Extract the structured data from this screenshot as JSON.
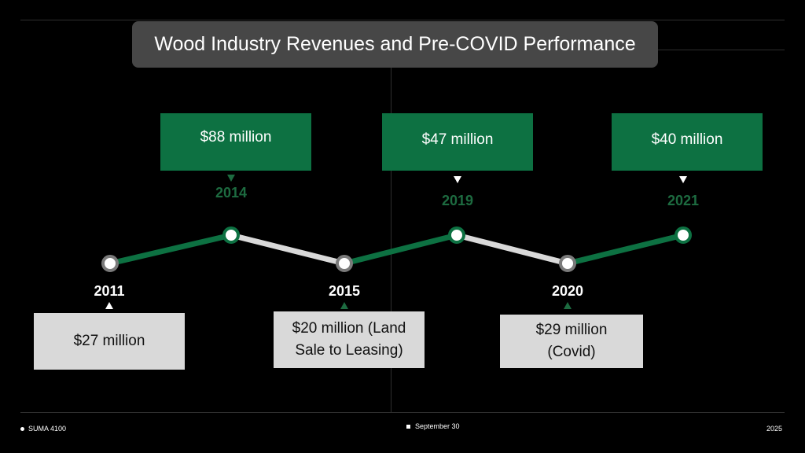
{
  "slide": {
    "title": "Wood Industry Revenues and  Pre-COVID Performance",
    "footer_left": "SUMA 4100",
    "footer_center": "September 30",
    "footer_right": "2025"
  },
  "colors": {
    "green": "#0d7142",
    "year_green": "#1d6b40",
    "grey_line": "#d9d9d9",
    "box_grey": "#d9d9d9"
  },
  "chart_data": {
    "type": "line",
    "title": "Wood Industry Revenues and  Pre-COVID Performance",
    "x": [
      "2011",
      "2014",
      "2015",
      "2019",
      "2020",
      "2021"
    ],
    "values": [
      27,
      88,
      20,
      47,
      29,
      40
    ],
    "unit": "million USD",
    "labels": [
      "$27 million",
      "$88 million",
      "$20 million (Land Sale to Leasing)",
      "$47 million",
      "$29 million (Covid)",
      "$40 million"
    ],
    "segment_colors": [
      "green",
      "grey",
      "green",
      "grey",
      "green"
    ]
  },
  "timeline": {
    "top": [
      {
        "year": "2014",
        "label": "$88 million"
      },
      {
        "year": "2019",
        "label": "$47 million"
      },
      {
        "year": "2021",
        "label": "$40 million"
      }
    ],
    "bottom": [
      {
        "year": "2011",
        "label": "$27 million"
      },
      {
        "year": "2015",
        "label": "$20 million (Land Sale to Leasing)"
      },
      {
        "year": "2020",
        "label": "$29 million (Covid)"
      }
    ]
  }
}
